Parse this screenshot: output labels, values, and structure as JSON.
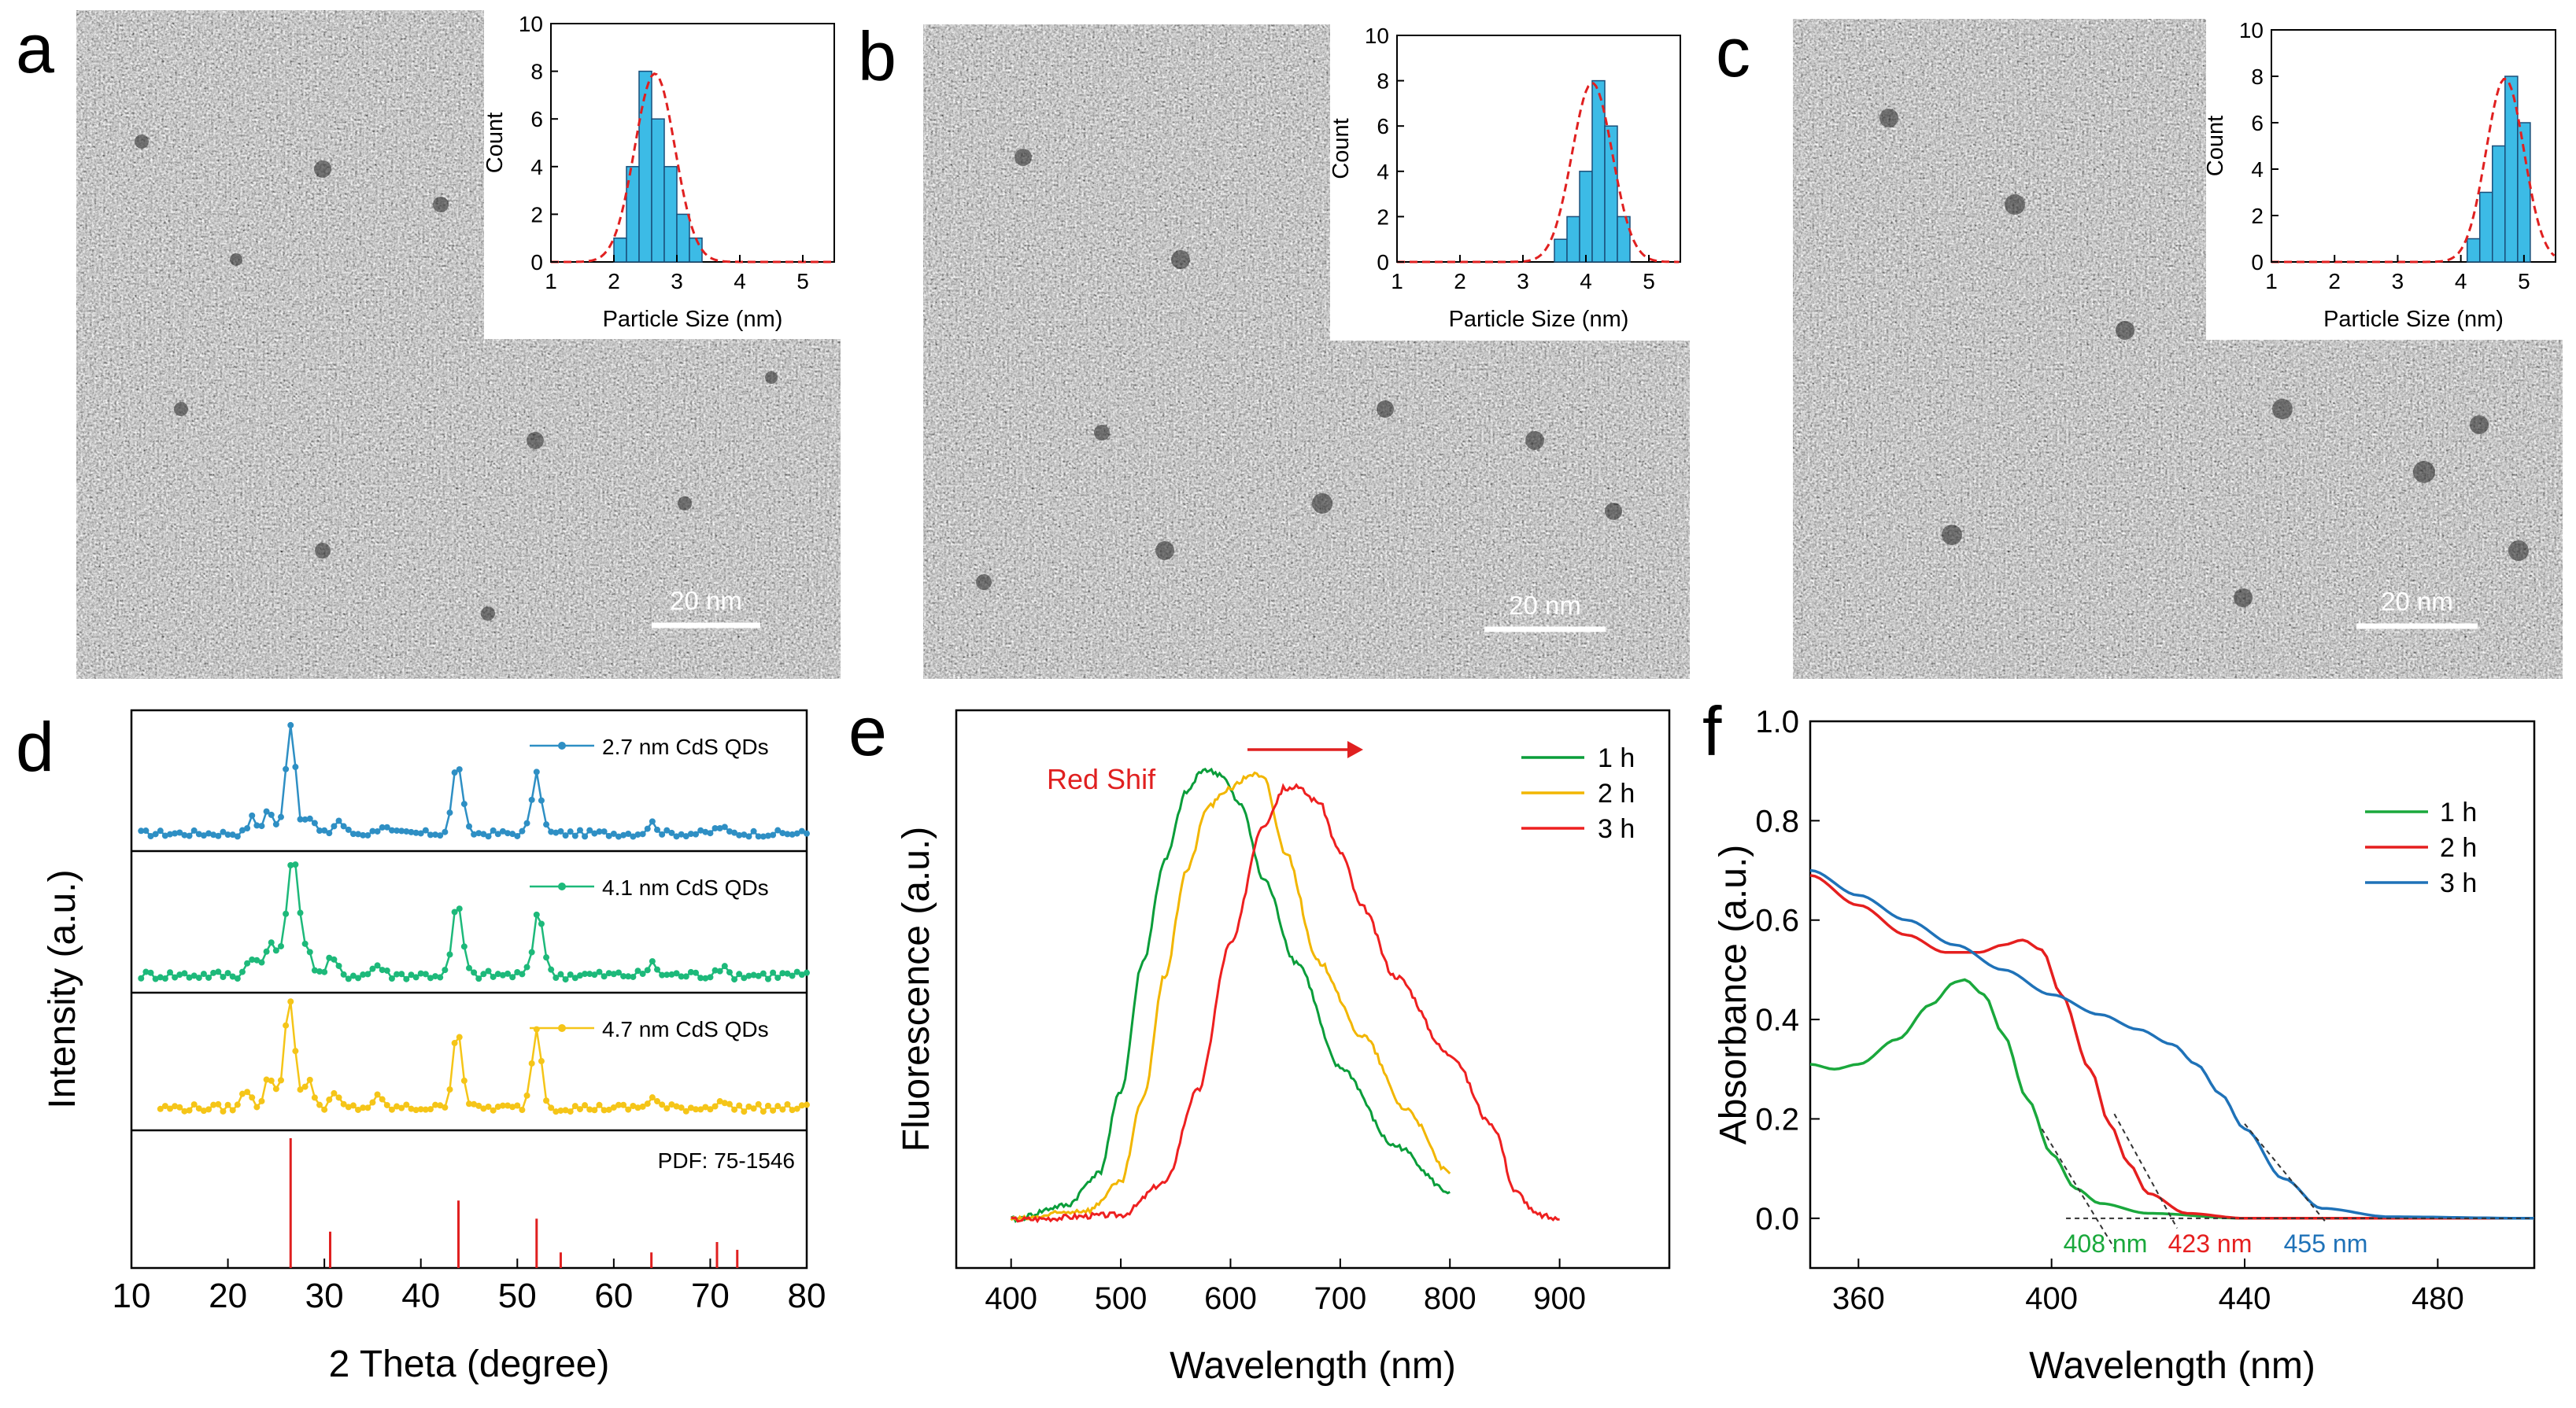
{
  "panels": {
    "a": {
      "label": "a",
      "scale_bar": "20 nm"
    },
    "b": {
      "label": "b",
      "scale_bar": "20 nm"
    },
    "c": {
      "label": "c",
      "scale_bar": "20 nm"
    },
    "d": {
      "label": "d"
    },
    "e": {
      "label": "e"
    },
    "f": {
      "label": "f"
    }
  },
  "colors": {
    "blue": "#2e8fc4",
    "green": "#1db97a",
    "yellow": "#f5c518",
    "red": "#e02020",
    "hist_fill": "#3cbbe6",
    "fit_line": "#e02020",
    "pl_green": "#0a9d3a",
    "pl_yellow": "#f2b600",
    "pl_red": "#ee2020",
    "abs_green": "#1aa83c",
    "abs_red": "#e51f1f",
    "abs_blue": "#1f72b8"
  },
  "chart_data": [
    {
      "id": "inset-a",
      "type": "bar",
      "xlabel": "Particle Size (nm)",
      "ylabel": "Count",
      "xlim": [
        1,
        5.5
      ],
      "ylim": [
        0,
        10
      ],
      "xticks": [
        1,
        2,
        3,
        4,
        5
      ],
      "yticks": [
        0,
        2,
        4,
        6,
        8,
        10
      ],
      "bin_edges": [
        2.0,
        2.2,
        2.4,
        2.6,
        2.8,
        3.0,
        3.2,
        3.4
      ],
      "values": [
        1,
        4,
        8,
        6,
        4,
        2,
        1
      ],
      "fit": {
        "mean": 2.65,
        "sigma": 0.32,
        "peak": 7.9
      }
    },
    {
      "id": "inset-b",
      "type": "bar",
      "xlabel": "Particle Size (nm)",
      "ylabel": "Count",
      "xlim": [
        1,
        5.5
      ],
      "ylim": [
        0,
        10
      ],
      "xticks": [
        1,
        2,
        3,
        4,
        5
      ],
      "yticks": [
        0,
        2,
        4,
        6,
        8,
        10
      ],
      "bin_edges": [
        3.5,
        3.7,
        3.9,
        4.1,
        4.3,
        4.5,
        4.7
      ],
      "values": [
        1,
        2,
        4,
        8,
        6,
        2
      ],
      "fit": {
        "mean": 4.1,
        "sigma": 0.32,
        "peak": 7.9
      }
    },
    {
      "id": "inset-c",
      "type": "bar",
      "xlabel": "Particle Size (nm)",
      "ylabel": "Count",
      "xlim": [
        1,
        5.5
      ],
      "ylim": [
        0,
        10
      ],
      "xticks": [
        1,
        2,
        3,
        4,
        5
      ],
      "yticks": [
        0,
        2,
        4,
        6,
        8,
        10
      ],
      "bin_edges": [
        4.1,
        4.3,
        4.5,
        4.7,
        4.9,
        5.1
      ],
      "values": [
        1,
        3,
        5,
        8,
        6
      ],
      "fit": {
        "mean": 4.7,
        "sigma": 0.3,
        "peak": 7.9
      }
    },
    {
      "id": "xrd",
      "type": "line",
      "xlabel": "2 Theta (degree)",
      "ylabel": "Intensity (a.u.)",
      "xlim": [
        10,
        80
      ],
      "xticks": [
        10,
        20,
        30,
        40,
        50,
        60,
        70,
        80
      ],
      "series": [
        {
          "name": "2.7 nm CdS QDs",
          "color": "#2e8fc4",
          "base": 0.1,
          "noise": 0.025,
          "start": 11,
          "peaks": [
            [
              26.5,
              0.85,
              0.5
            ],
            [
              24.2,
              0.18,
              0.5
            ],
            [
              22.5,
              0.12,
              0.4
            ],
            [
              28.5,
              0.12,
              0.5
            ],
            [
              31.5,
              0.1,
              0.5
            ],
            [
              36,
              0.06,
              0.5
            ],
            [
              43.8,
              0.55,
              0.5
            ],
            [
              52,
              0.45,
              0.5
            ],
            [
              64,
              0.08,
              0.5
            ],
            [
              71,
              0.05,
              0.5
            ]
          ]
        },
        {
          "name": "4.1 nm CdS QDs",
          "color": "#1db97a",
          "base": 0.1,
          "noise": 0.035,
          "start": 11,
          "peaks": [
            [
              26.7,
              0.92,
              0.6
            ],
            [
              24.5,
              0.25,
              0.6
            ],
            [
              22.5,
              0.15,
              0.5
            ],
            [
              28.2,
              0.2,
              0.5
            ],
            [
              30.8,
              0.12,
              0.5
            ],
            [
              35.5,
              0.08,
              0.5
            ],
            [
              43.8,
              0.55,
              0.5
            ],
            [
              52.2,
              0.5,
              0.5
            ],
            [
              64,
              0.08,
              0.5
            ],
            [
              71,
              0.06,
              0.5
            ]
          ]
        },
        {
          "name": "4.7 nm CdS QDs",
          "color": "#f5c518",
          "base": 0.14,
          "noise": 0.03,
          "start": 13,
          "peaks": [
            [
              26.4,
              0.85,
              0.55
            ],
            [
              24.3,
              0.25,
              0.5
            ],
            [
              22,
              0.15,
              0.5
            ],
            [
              28.4,
              0.2,
              0.5
            ],
            [
              31,
              0.1,
              0.5
            ],
            [
              35.5,
              0.08,
              0.5
            ],
            [
              43.8,
              0.62,
              0.5
            ],
            [
              52,
              0.62,
              0.5
            ],
            [
              64,
              0.08,
              0.5
            ],
            [
              71,
              0.06,
              0.5
            ]
          ]
        }
      ],
      "reference": {
        "name": "PDF: 75-1546",
        "color": "#e02020",
        "lines": [
          [
            26.5,
            1.0
          ],
          [
            30.6,
            0.28
          ],
          [
            43.9,
            0.52
          ],
          [
            52.0,
            0.38
          ],
          [
            54.5,
            0.12
          ],
          [
            63.9,
            0.12
          ],
          [
            70.7,
            0.2
          ],
          [
            72.8,
            0.14
          ]
        ]
      }
    },
    {
      "id": "pl",
      "type": "line",
      "xlabel": "Wavelength (nm)",
      "ylabel": "Fluorescence (a.u.)",
      "xlim": [
        350,
        1000
      ],
      "xticks": [
        400,
        500,
        600,
        700,
        800,
        900
      ],
      "annotation": "Red  Shif",
      "legend": [
        "1  h",
        "2  h",
        "3  h"
      ],
      "series": [
        {
          "name": "1  h",
          "color": "#0a9d3a",
          "x": [
            400,
            450,
            480,
            500,
            520,
            540,
            560,
            575,
            590,
            610,
            630,
            660,
            700,
            750,
            800
          ],
          "y": [
            0.02,
            0.05,
            0.12,
            0.3,
            0.58,
            0.8,
            0.95,
            1.0,
            0.99,
            0.92,
            0.76,
            0.58,
            0.35,
            0.18,
            0.08
          ]
        },
        {
          "name": "2  h",
          "color": "#f2b600",
          "x": [
            400,
            470,
            500,
            520,
            540,
            560,
            580,
            600,
            620,
            630,
            650,
            680,
            720,
            760,
            800
          ],
          "y": [
            0.02,
            0.04,
            0.1,
            0.28,
            0.55,
            0.78,
            0.92,
            0.96,
            0.99,
            0.98,
            0.82,
            0.58,
            0.42,
            0.26,
            0.12
          ]
        },
        {
          "name": "3  h",
          "color": "#ee2020",
          "x": [
            400,
            500,
            540,
            570,
            600,
            630,
            650,
            660,
            680,
            700,
            720,
            750,
            800,
            840,
            860,
            880,
            900
          ],
          "y": [
            0.02,
            0.03,
            0.1,
            0.3,
            0.62,
            0.88,
            0.96,
            0.96,
            0.93,
            0.82,
            0.7,
            0.55,
            0.38,
            0.22,
            0.08,
            0.03,
            0.02
          ]
        }
      ]
    },
    {
      "id": "abs",
      "type": "line",
      "xlabel": "Wavelength (nm)",
      "ylabel": "Absorbance (a.u.)",
      "xlim": [
        350,
        500
      ],
      "ylim": [
        -0.1,
        1.0
      ],
      "xticks": [
        360,
        400,
        440,
        480
      ],
      "yticks": [
        0.0,
        0.2,
        0.4,
        0.6,
        0.8,
        1.0
      ],
      "yticklabels": [
        "0.0",
        "0.2",
        "0.4",
        "0.6",
        "0.8",
        "1.0"
      ],
      "legend": [
        "1 h",
        "2 h",
        "3 h"
      ],
      "annotations": [
        "408 nm",
        "423 nm",
        "455 nm"
      ],
      "series": [
        {
          "name": "1 h",
          "color": "#1aa83c",
          "x": [
            350,
            355,
            360,
            368,
            375,
            380,
            382,
            386,
            390,
            395,
            400,
            405,
            410,
            420,
            440,
            500
          ],
          "y": [
            0.31,
            0.3,
            0.31,
            0.36,
            0.43,
            0.475,
            0.48,
            0.45,
            0.37,
            0.24,
            0.13,
            0.06,
            0.03,
            0.01,
            0.0,
            0.0
          ]
        },
        {
          "name": "2 h",
          "color": "#e51f1f",
          "x": [
            350,
            360,
            370,
            378,
            385,
            390,
            394,
            398,
            402,
            408,
            412,
            416,
            420,
            428,
            440,
            500
          ],
          "y": [
            0.69,
            0.63,
            0.57,
            0.535,
            0.535,
            0.55,
            0.56,
            0.54,
            0.45,
            0.3,
            0.19,
            0.11,
            0.05,
            0.01,
            0.0,
            0.0
          ]
        },
        {
          "name": "3 h",
          "color": "#1f72b8",
          "x": [
            350,
            360,
            370,
            380,
            390,
            400,
            410,
            418,
            425,
            430,
            435,
            440,
            448,
            456,
            470,
            500
          ],
          "y": [
            0.7,
            0.65,
            0.6,
            0.55,
            0.5,
            0.45,
            0.41,
            0.38,
            0.35,
            0.31,
            0.25,
            0.18,
            0.08,
            0.02,
            0.003,
            0.0
          ]
        }
      ],
      "tangents": [
        {
          "color": "#333333",
          "x": [
            398,
            413
          ],
          "y": [
            0.18,
            -0.06
          ]
        },
        {
          "color": "#333333",
          "x": [
            413,
            426
          ],
          "y": [
            0.21,
            -0.02
          ]
        },
        {
          "color": "#333333",
          "x": [
            440,
            457
          ],
          "y": [
            0.19,
            -0.01
          ]
        },
        {
          "color": "#333333",
          "x": [
            403,
            500
          ],
          "y": [
            0.0,
            0.0
          ]
        }
      ]
    }
  ]
}
